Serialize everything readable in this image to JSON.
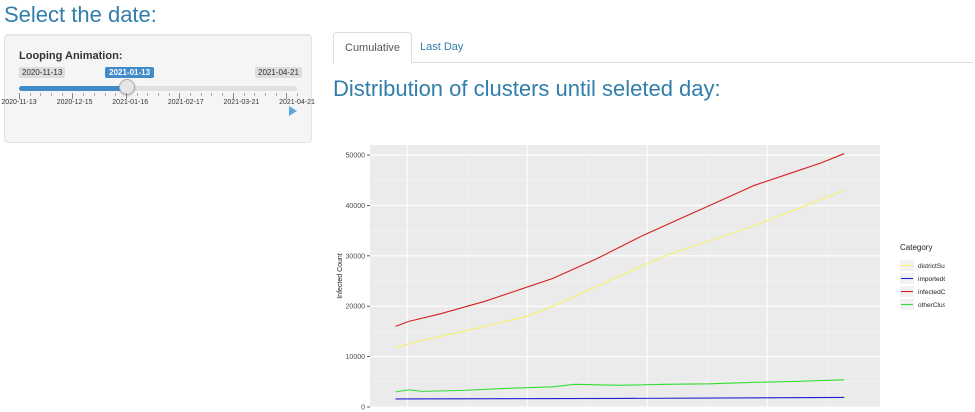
{
  "page": {
    "title": "Select the date:"
  },
  "slider": {
    "label": "Looping Animation:",
    "min_label": "2020-11-13",
    "max_label": "2021-04-21",
    "current_label": "2021-01-13",
    "value_fraction": 0.389,
    "tick_labels": [
      "2020-11-13",
      "2020-12-15",
      "2021-01-16",
      "2021-02-17",
      "2021-03-21",
      "2021-04-21"
    ],
    "accent_color": "#428bca",
    "play_icon": "play-triangle-icon"
  },
  "tabs": [
    {
      "label": "Cumulative",
      "active": true
    },
    {
      "label": "Last Day",
      "active": false
    }
  ],
  "main": {
    "section_title": "Distribution of clusters until seleted day:"
  },
  "chart_data": {
    "type": "line",
    "title": "",
    "xlabel": "",
    "ylabel": "Infected Count",
    "ylim": [
      0,
      52000
    ],
    "yticks": [
      0,
      10000,
      20000,
      30000,
      40000,
      50000
    ],
    "x_range": [
      0,
      1
    ],
    "legend_title": "Category",
    "legend_position": "right",
    "background": "#ebebeb",
    "grid": true,
    "series": [
      {
        "name": "districtSum",
        "color": "#f7f06a",
        "x": [
          0,
          0.05,
          0.1,
          0.2,
          0.3,
          0.35,
          0.45,
          0.55,
          0.6,
          0.7,
          0.8,
          0.9,
          1.0
        ],
        "values": [
          11800,
          13000,
          14000,
          16000,
          18200,
          20000,
          24000,
          28000,
          30000,
          33000,
          36000,
          39500,
          43000
        ]
      },
      {
        "name": "importedCase",
        "color": "#1f1fd0",
        "x": [
          0,
          0.5,
          1.0
        ],
        "values": [
          1600,
          1700,
          1900
        ]
      },
      {
        "name": "infectedCount",
        "color": "#d62020",
        "x": [
          0,
          0.03,
          0.1,
          0.2,
          0.3,
          0.35,
          0.45,
          0.55,
          0.65,
          0.7,
          0.8,
          0.9,
          0.95,
          1.0
        ],
        "values": [
          16000,
          17000,
          18500,
          21000,
          24000,
          25500,
          29500,
          34000,
          38000,
          40000,
          44000,
          47000,
          48500,
          50300
        ]
      },
      {
        "name": "otherCluster",
        "color": "#33dd33",
        "x": [
          0,
          0.03,
          0.06,
          0.15,
          0.25,
          0.35,
          0.4,
          0.5,
          0.6,
          0.7,
          0.8,
          0.9,
          1.0
        ],
        "values": [
          3000,
          3400,
          3100,
          3300,
          3700,
          4000,
          4500,
          4300,
          4500,
          4600,
          4900,
          5100,
          5400
        ]
      }
    ]
  }
}
